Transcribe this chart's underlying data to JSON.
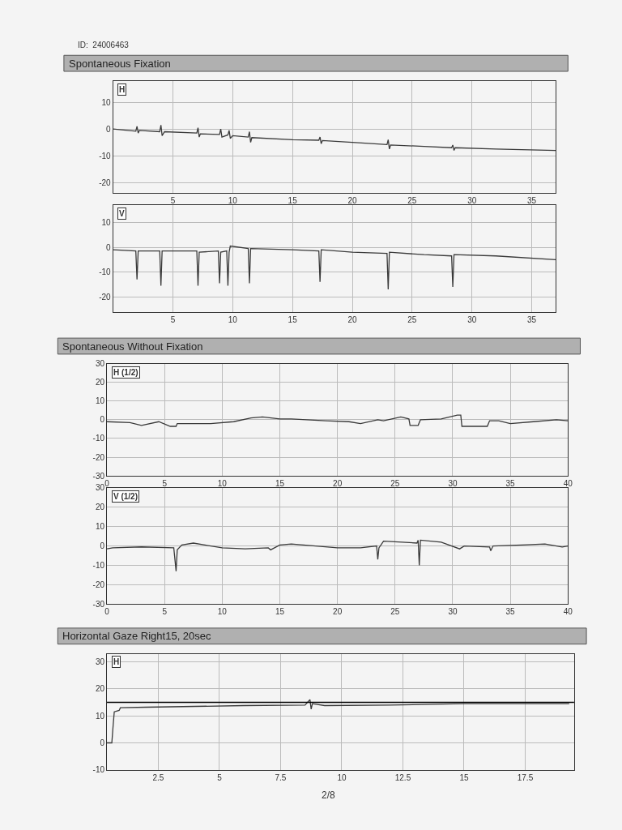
{
  "chart_data": [
    {
      "type": "line",
      "title": "Spontaneous Fixation",
      "ylabel": "H",
      "annotations": [
        "ID:  24006463"
      ],
      "xlim": [
        0,
        37
      ],
      "ylim": [
        -24,
        18
      ],
      "xticks": [
        5,
        10,
        15,
        20,
        25,
        30,
        35
      ],
      "yticks": [
        10,
        0,
        -10,
        -20
      ],
      "grid": true,
      "line_style": "solid",
      "color": "#3a3a3a",
      "x": [
        0,
        1.9,
        2,
        2.1,
        2.2,
        3.9,
        4,
        4.1,
        4.3,
        7,
        7.1,
        7.2,
        7.3,
        8.9,
        9,
        9.1,
        9.6,
        9.7,
        9.8,
        10,
        11.3,
        11.4,
        11.5,
        11.6,
        15,
        17.2,
        17.3,
        17.4,
        17.5,
        20,
        22.9,
        23,
        23.1,
        23.2,
        26,
        28.3,
        28.4,
        28.5,
        28.6,
        32,
        37
      ],
      "values": [
        0,
        -0.8,
        1,
        -1.5,
        -0.5,
        -1,
        1.5,
        -2.5,
        -1,
        -1.5,
        0.5,
        -3,
        -1.8,
        -2,
        0,
        -3,
        -2.2,
        -0.5,
        -3.5,
        -2.5,
        -3,
        -1,
        -5,
        -3.2,
        -4,
        -4.2,
        -3,
        -5.5,
        -4.3,
        -5,
        -5.8,
        -4,
        -7.5,
        -6,
        -6.5,
        -7,
        -6,
        -8,
        -7,
        -7.5,
        -8
      ]
    },
    {
      "type": "line",
      "ylabel": "V",
      "xlim": [
        0,
        37
      ],
      "ylim": [
        -26,
        17
      ],
      "xticks": [
        5,
        10,
        15,
        20,
        25,
        30,
        35
      ],
      "yticks": [
        10,
        0,
        -10,
        -20
      ],
      "grid": true,
      "line_style": "solid",
      "color": "#3a3a3a",
      "x": [
        0,
        1.9,
        2,
        2.1,
        3.9,
        4,
        4.1,
        7,
        7.1,
        7.2,
        8.8,
        8.9,
        9,
        9.5,
        9.6,
        9.7,
        9.8,
        11.3,
        11.4,
        11.5,
        15,
        17.2,
        17.3,
        17.4,
        20,
        22.9,
        23,
        23.1,
        26,
        28.3,
        28.4,
        28.5,
        32,
        37
      ],
      "values": [
        -1,
        -1.5,
        -13,
        -1.5,
        -1.5,
        -15.5,
        -1.5,
        -1.5,
        -15.5,
        -2,
        -1.5,
        -14.5,
        -2,
        -1.5,
        -15.5,
        -2,
        0.5,
        -0.5,
        -14.5,
        -0.5,
        -1,
        -1.5,
        -14,
        -1,
        -2,
        -2.5,
        -17,
        -2,
        -3,
        -3.5,
        -16,
        -3,
        -3.5,
        -5
      ]
    },
    {
      "type": "line",
      "title": "Spontaneous Without Fixation",
      "ylabel": "H (1/2)",
      "xlim": [
        0,
        40
      ],
      "ylim": [
        -30,
        30
      ],
      "xticks": [
        0,
        5,
        10,
        15,
        20,
        25,
        30,
        35,
        40
      ],
      "yticks": [
        30,
        20,
        10,
        0,
        -10,
        -20,
        -30
      ],
      "grid": true,
      "line_style": "solid",
      "color": "#3a3a3a",
      "x": [
        0,
        2,
        3,
        4.5,
        5.5,
        6,
        6.1,
        9,
        11,
        12.5,
        13.5,
        15,
        16,
        19,
        21,
        22,
        23.5,
        24,
        25.5,
        26.2,
        26.3,
        27,
        27.2,
        29,
        30.4,
        30.7,
        30.8,
        33,
        33.2,
        34,
        35,
        37,
        39,
        40
      ],
      "values": [
        -1,
        -1.5,
        -3,
        -1,
        -3.5,
        -3.5,
        -2,
        -2,
        -1,
        1,
        1.5,
        0.5,
        0.5,
        -0.5,
        -1,
        -2,
        0,
        -0.5,
        1.5,
        0.5,
        -3,
        -3,
        0,
        0.5,
        2.5,
        2.5,
        -3.5,
        -3.5,
        -0.5,
        -0.5,
        -2,
        -1,
        0,
        -0.5
      ]
    },
    {
      "type": "line",
      "ylabel": "V (1/2)",
      "xlim": [
        0,
        40
      ],
      "ylim": [
        -30,
        30
      ],
      "xticks": [
        0,
        5,
        10,
        15,
        20,
        25,
        30,
        35,
        40
      ],
      "yticks": [
        30,
        20,
        10,
        0,
        -10,
        -20,
        -30
      ],
      "grid": true,
      "line_style": "solid",
      "color": "#3a3a3a",
      "x": [
        0,
        0.5,
        3,
        5.8,
        6,
        6.1,
        6.5,
        7.5,
        10,
        12,
        14,
        14.2,
        15,
        16,
        20,
        22,
        23.4,
        23.5,
        23.6,
        24,
        26.9,
        27,
        27.1,
        27.2,
        29,
        30.6,
        31,
        33.2,
        33.3,
        33.5,
        36,
        38,
        39.5,
        40
      ],
      "values": [
        -1.5,
        -1,
        -0.5,
        -1,
        -13,
        -2,
        0.5,
        1.5,
        -1,
        -1.5,
        -1,
        -2,
        0.5,
        1,
        -1,
        -1,
        0,
        -7,
        -1,
        2.5,
        1.5,
        3,
        -10,
        3,
        2,
        -1.5,
        0,
        -0.5,
        -2.5,
        0,
        0.5,
        1,
        -0.5,
        0
      ]
    },
    {
      "type": "line",
      "title": "Horizontal Gaze Right15, 20sec",
      "ylabel": "H",
      "annotations": [
        "2/8"
      ],
      "xlim": [
        0.4,
        19.5
      ],
      "ylim": [
        -10,
        33
      ],
      "xticks": [
        2.5,
        5,
        7.5,
        10,
        12.5,
        15,
        17.5
      ],
      "yticks": [
        30,
        20,
        10,
        0,
        -10
      ],
      "grid": true,
      "line_style": "solid",
      "color": "#3a3a3a",
      "ref_lines": [
        {
          "axis": "y",
          "value": 15,
          "color": "#000000"
        }
      ],
      "x": [
        0.4,
        0.6,
        0.65,
        0.7,
        0.9,
        0.95,
        2,
        4,
        6,
        8.5,
        8.7,
        8.75,
        8.8,
        9.3,
        12,
        15,
        19.3
      ],
      "values": [
        0,
        0,
        6,
        11.5,
        12,
        13,
        13.2,
        13.5,
        13.8,
        14,
        16,
        12.5,
        14.5,
        13.8,
        14,
        14.5,
        14.5
      ]
    }
  ]
}
